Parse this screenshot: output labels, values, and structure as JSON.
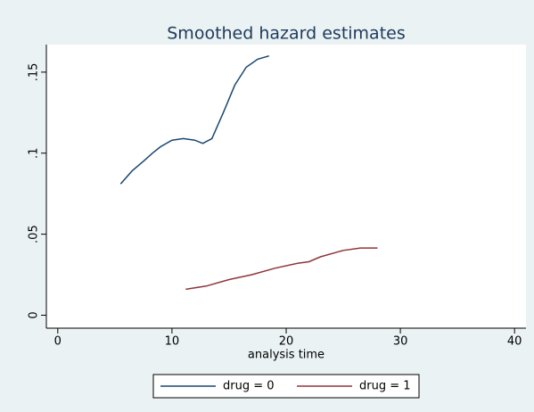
{
  "chart_data": {
    "type": "line",
    "title": "Smoothed hazard estimates",
    "x_label": "analysis time",
    "xlim": [
      -1,
      41
    ],
    "xticks": [
      0,
      10,
      20,
      30,
      40
    ],
    "ylim": [
      -0.008,
      0.167
    ],
    "yticks": [
      0,
      {
        "value": 0.05,
        "label": ".05"
      },
      {
        "value": 0.1,
        "label": ".1"
      },
      {
        "value": 0.15,
        "label": ".15"
      }
    ],
    "grid": false,
    "legend": "bottom",
    "series": [
      {
        "name": "drug = 0",
        "color": "#1a476f",
        "x": [
          5.5,
          6.5,
          7.5,
          8.3,
          9,
          10,
          11,
          12,
          12.7,
          13.5,
          14.5,
          15.5,
          16.5,
          17.5,
          18.5
        ],
        "values": [
          0.081,
          0.089,
          0.095,
          0.1,
          0.104,
          0.108,
          0.109,
          0.108,
          0.106,
          0.109,
          0.125,
          0.142,
          0.153,
          0.158,
          0.16
        ]
      },
      {
        "name": "drug = 1",
        "color": "#90353b",
        "x": [
          11.2,
          13,
          15,
          17,
          19,
          21,
          22,
          23,
          25,
          26.5,
          28
        ],
        "values": [
          0.016,
          0.018,
          0.022,
          0.025,
          0.029,
          0.032,
          0.033,
          0.036,
          0.04,
          0.0415,
          0.0415
        ]
      }
    ]
  }
}
